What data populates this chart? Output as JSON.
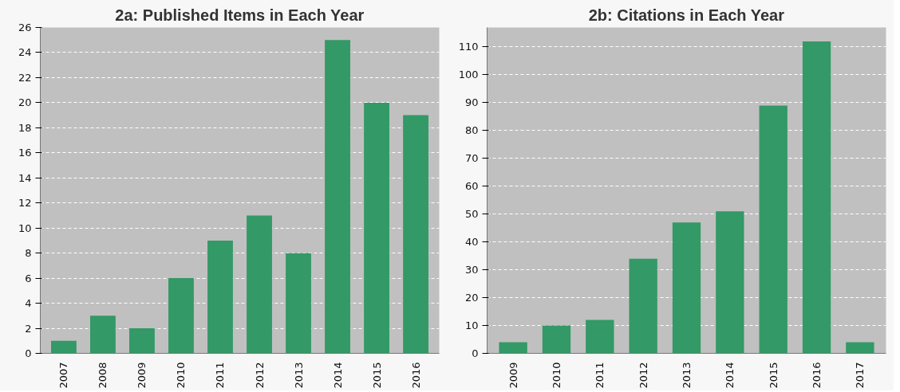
{
  "chart_data": [
    {
      "type": "bar",
      "title": "2a: Published Items in Each Year",
      "categories": [
        "2007",
        "2008",
        "2009",
        "2010",
        "2011",
        "2012",
        "2013",
        "2014",
        "2015",
        "2016"
      ],
      "values": [
        1,
        3,
        2,
        6,
        9,
        11,
        8,
        25,
        20,
        19
      ],
      "color": "#339966",
      "ylim": [
        0,
        26
      ],
      "yticks": [
        0,
        2,
        4,
        6,
        8,
        10,
        12,
        14,
        16,
        18,
        20,
        22,
        24,
        26
      ],
      "grid": "y"
    },
    {
      "type": "bar",
      "title": "2b: Citations in Each Year",
      "categories": [
        "2009",
        "2010",
        "2011",
        "2012",
        "2013",
        "2014",
        "2015",
        "2016",
        "2017"
      ],
      "values": [
        4,
        10,
        12,
        34,
        47,
        51,
        89,
        112,
        4
      ],
      "color": "#339966",
      "ylim": [
        0,
        117
      ],
      "yticks": [
        0,
        10,
        20,
        30,
        40,
        50,
        60,
        70,
        80,
        90,
        100,
        110
      ],
      "grid": "y"
    }
  ]
}
